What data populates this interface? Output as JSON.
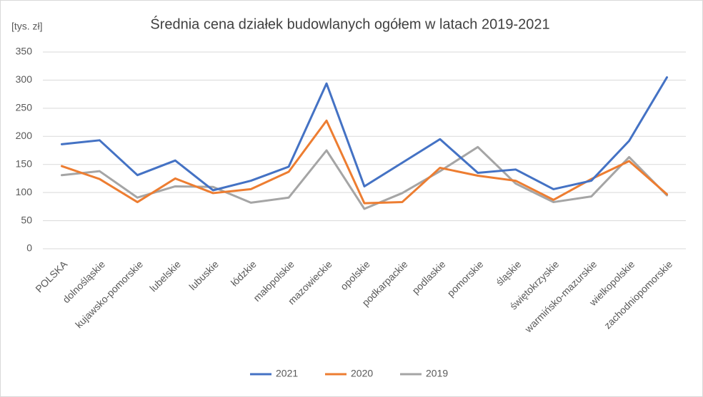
{
  "chart_data": {
    "type": "line",
    "title": "Średnia cena działek budowlanych ogółem w latach 2019-2021",
    "y_label": "[tys. zł]",
    "categories": [
      "POLSKA",
      "dolnośląskie",
      "kujawsko-pomorskie",
      "lubelskie",
      "lubuskie",
      "łódzkie",
      "małopolskie",
      "mazowieckie",
      "opolskie",
      "podkarpackie",
      "podlaskie",
      "pomorskie",
      "śląskie",
      "świętokrzyskie",
      "warmińsko-mazurskie",
      "wielkopolskie",
      "zachodniopomorskie"
    ],
    "series": [
      {
        "name": "2021",
        "color": "#4472c4",
        "values": [
          186,
          193,
          131,
          157,
          104,
          121,
          146,
          294,
          111,
          153,
          195,
          135,
          141,
          106,
          121,
          192,
          305
        ]
      },
      {
        "name": "2020",
        "color": "#ed7d31",
        "values": [
          147,
          124,
          83,
          125,
          99,
          106,
          137,
          228,
          81,
          83,
          144,
          130,
          121,
          87,
          124,
          156,
          97
        ]
      },
      {
        "name": "2019",
        "color": "#a5a5a5",
        "values": [
          131,
          138,
          91,
          111,
          110,
          82,
          91,
          175,
          71,
          99,
          138,
          181,
          116,
          83,
          93,
          163,
          95
        ]
      }
    ],
    "ylim": [
      0,
      350
    ],
    "yticks": [
      0,
      50,
      100,
      150,
      200,
      250,
      300,
      350
    ],
    "grid": true,
    "legend": "bottom"
  }
}
